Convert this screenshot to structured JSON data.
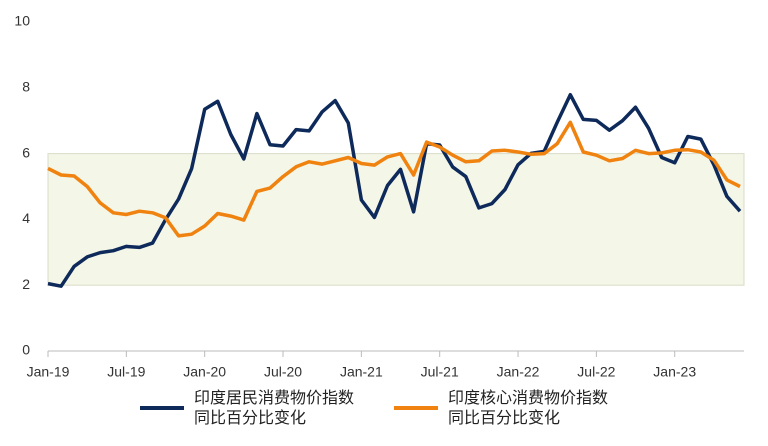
{
  "chart_data": {
    "type": "line",
    "categories": [
      "Jan-19",
      null,
      null,
      null,
      null,
      null,
      "Jul-19",
      null,
      null,
      null,
      null,
      null,
      "Jan-20",
      null,
      null,
      null,
      null,
      null,
      "Jul-20",
      null,
      null,
      null,
      null,
      null,
      "Jan-21",
      null,
      null,
      null,
      null,
      null,
      "Jul-21",
      null,
      null,
      null,
      null,
      null,
      "Jan-22",
      null,
      null,
      null,
      null,
      null,
      "Jul-22",
      null,
      null,
      null,
      null,
      null,
      "Jan-23",
      null,
      null,
      null,
      null,
      null
    ],
    "series": [
      {
        "name": "印度居民消费物价指数\n同比百分比变化",
        "color": "#0e2a5a",
        "values": [
          2.05,
          1.97,
          2.57,
          2.86,
          2.99,
          3.05,
          3.18,
          3.15,
          3.28,
          3.99,
          4.62,
          5.54,
          7.35,
          7.59,
          6.58,
          5.84,
          7.22,
          6.27,
          6.23,
          6.73,
          6.69,
          7.27,
          7.61,
          6.93,
          4.59,
          4.06,
          5.03,
          5.52,
          4.23,
          6.3,
          6.26,
          5.59,
          5.3,
          4.35,
          4.48,
          4.91,
          5.66,
          6.01,
          6.07,
          6.95,
          7.79,
          7.04,
          7.01,
          6.71,
          7.0,
          7.41,
          6.77,
          5.88,
          5.72,
          6.52,
          6.44,
          5.66,
          4.7,
          4.25
        ]
      },
      {
        "name": "印度核心消费物价指数\n同比百分比变化",
        "color": "#f0820f",
        "values": [
          5.55,
          5.35,
          5.32,
          5.0,
          4.5,
          4.2,
          4.15,
          4.25,
          4.2,
          4.05,
          3.5,
          3.55,
          3.8,
          4.18,
          4.1,
          3.98,
          4.85,
          4.95,
          5.3,
          5.6,
          5.75,
          5.68,
          5.78,
          5.88,
          5.7,
          5.65,
          5.9,
          6.0,
          5.35,
          6.35,
          6.2,
          5.95,
          5.75,
          5.78,
          6.08,
          6.1,
          6.05,
          5.98,
          6.0,
          6.3,
          6.95,
          6.05,
          5.95,
          5.78,
          5.85,
          6.1,
          6.0,
          6.02,
          6.1,
          6.12,
          6.05,
          5.8,
          5.2,
          5.0
        ]
      }
    ],
    "ylim": [
      0,
      10
    ],
    "yticks": [
      0,
      2,
      4,
      6,
      8,
      10
    ],
    "grid": false,
    "shaded_band": {
      "from": 2,
      "to": 6,
      "color": "#f4f6e7"
    },
    "legend": "bottom"
  }
}
